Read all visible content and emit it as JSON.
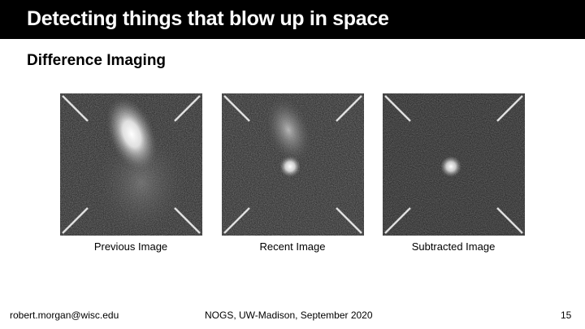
{
  "slide": {
    "title": "Detecting things that blow up in space",
    "subtitle": "Difference Imaging"
  },
  "panels": [
    {
      "caption": "Previous Image"
    },
    {
      "caption": "Recent Image"
    },
    {
      "caption": "Subtracted Image"
    }
  ],
  "footer": {
    "author": "robert.morgan@wisc.edu",
    "event": "NOGS, UW-Madison, September 2020",
    "page": "15"
  }
}
